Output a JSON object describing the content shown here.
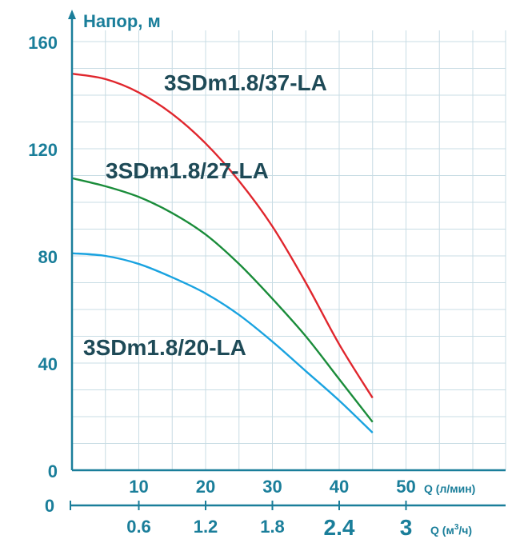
{
  "colors": {
    "axis": "#1a7e9a",
    "grid": "#c8dce4",
    "label": "#1e4a57"
  },
  "chart_data": {
    "type": "line",
    "ylabel": "Напор, м",
    "ylim": [
      0,
      160
    ],
    "xlim": [
      0,
      65
    ],
    "y_ticks": [
      "0",
      "40",
      "80",
      "120",
      "160"
    ],
    "x_ticks_lmin": [
      "10",
      "20",
      "30",
      "40",
      "50"
    ],
    "x_ticks_lmin_values": [
      10,
      20,
      30,
      40,
      50
    ],
    "x_unit_lmin": "Q (л/мин)",
    "x_ticks_m3h": [
      "0.6",
      "1.2",
      "1.8",
      "2.4",
      "3"
    ],
    "x_ticks_m3h_values": [
      10,
      20,
      30,
      40,
      50
    ],
    "x_unit_m3h": "Q (м",
    "x_unit_m3h_sup": "3",
    "x_unit_m3h_end": "/ч)",
    "x_zero": "0",
    "series": [
      {
        "name": "3SDm1.8/37-LA",
        "color": "#e0262d",
        "x": [
          0,
          5,
          10,
          15,
          20,
          25,
          30,
          35,
          40,
          45
        ],
        "y": [
          148,
          146,
          141,
          133,
          122,
          108,
          91,
          70,
          47,
          27
        ]
      },
      {
        "name": "3SDm1.8/27-LA",
        "color": "#1a8c3a",
        "x": [
          0,
          5,
          10,
          15,
          20,
          25,
          30,
          35,
          40,
          45
        ],
        "y": [
          109,
          106,
          102,
          96,
          88,
          77,
          64,
          50,
          34,
          18
        ]
      },
      {
        "name": "3SDm1.8/20-LA",
        "color": "#1aa3e0",
        "x": [
          0,
          5,
          10,
          15,
          20,
          25,
          30,
          35,
          40,
          45
        ],
        "y": [
          81,
          80,
          77,
          72,
          66,
          58,
          48,
          37,
          26,
          14
        ]
      }
    ]
  }
}
